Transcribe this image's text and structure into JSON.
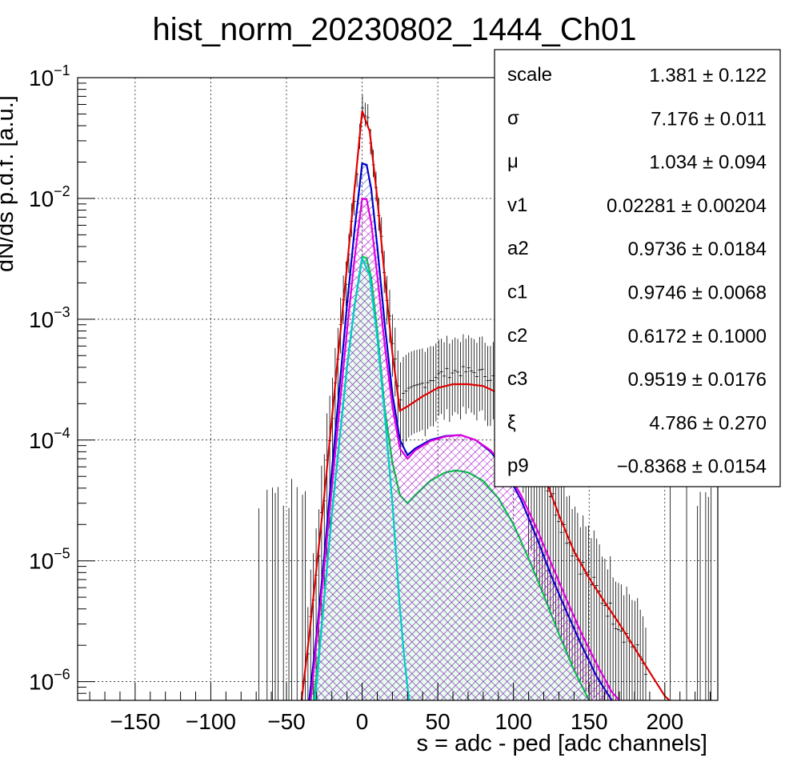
{
  "chart_data": {
    "type": "line",
    "title": "hist_norm_20230802_1444_Ch01",
    "xlabel": "s = adc - ped [adc channels]",
    "ylabel": "dN/ds p.d.f. [a.u.]",
    "xlim": [
      -188,
      235
    ],
    "ylim": [
      7e-07,
      0.1
    ],
    "yscale": "log",
    "grid": true,
    "x_ticks": [
      -150,
      -100,
      -50,
      0,
      50,
      100,
      150,
      200
    ],
    "x_tick_labels": [
      "−150",
      "−100",
      "−50",
      "0",
      "50",
      "100",
      "150",
      "200"
    ],
    "y_ticks": [
      {
        "base": "10",
        "exp": "−6",
        "value": 1e-06
      },
      {
        "base": "10",
        "exp": "−5",
        "value": 1e-05
      },
      {
        "base": "10",
        "exp": "−4",
        "value": 0.0001
      },
      {
        "base": "10",
        "exp": "−3",
        "value": 0.001
      },
      {
        "base": "10",
        "exp": "−2",
        "value": 0.01
      },
      {
        "base": "10",
        "exp": "−1",
        "value": 0.1
      }
    ],
    "legend_position": "top-right",
    "fit_parameters": [
      {
        "name": "scale",
        "value": "1.381",
        "error": "0.122"
      },
      {
        "name": "σ",
        "value": "7.176",
        "error": "0.011"
      },
      {
        "name": "μ",
        "value": "1.034",
        "error": "0.094"
      },
      {
        "name": "v1",
        "value": "0.02281",
        "error": "0.00204"
      },
      {
        "name": "a2",
        "value": "0.9736",
        "error": "0.0184"
      },
      {
        "name": "c1",
        "value": "0.9746",
        "error": "0.0068"
      },
      {
        "name": "c2",
        "value": "0.6172",
        "error": "0.1000"
      },
      {
        "name": "c3",
        "value": "0.9519",
        "error": "0.0176"
      },
      {
        "name": "ξ",
        "value": "4.786",
        "error": "0.270"
      },
      {
        "name": "p9",
        "value": "−0.8368",
        "error": "0.0154"
      }
    ],
    "pm_symbol": "±",
    "colors": {
      "total": "#e00000",
      "component_blue": "#0000cc",
      "component_magenta": "#e000e0",
      "component_green": "#00cc44",
      "component_cyan": "#00cccc",
      "data": "#000000",
      "grid": "#000000"
    },
    "series": [
      {
        "color_key": "total",
        "points": [
          [
            -40,
            7e-07
          ],
          [
            -35,
            2.4e-06
          ],
          [
            -30,
            9e-06
          ],
          [
            -25,
            3.5e-05
          ],
          [
            -20,
            0.00015
          ],
          [
            -15,
            0.00065
          ],
          [
            -10,
            0.0027
          ],
          [
            -5,
            0.012
          ],
          [
            0,
            0.053
          ],
          [
            5,
            0.036
          ],
          [
            10,
            0.01
          ],
          [
            15,
            0.0022
          ],
          [
            20,
            0.00052
          ],
          [
            25,
            0.000175
          ],
          [
            30,
            0.00019
          ],
          [
            40,
            0.00023
          ],
          [
            50,
            0.00027
          ],
          [
            60,
            0.00029
          ],
          [
            70,
            0.00029
          ],
          [
            80,
            0.00028
          ],
          [
            90,
            0.000245
          ],
          [
            100,
            0.00018
          ],
          [
            110,
            0.000105
          ],
          [
            120,
            5.2e-05
          ],
          [
            130,
            2.4e-05
          ],
          [
            140,
            1.2e-05
          ],
          [
            150,
            7.2e-06
          ],
          [
            160,
            4.6e-06
          ],
          [
            170,
            3e-06
          ],
          [
            180,
            1.9e-06
          ],
          [
            190,
            1.2e-06
          ],
          [
            200,
            7.6e-07
          ],
          [
            203,
            7e-07
          ]
        ]
      },
      {
        "color_key": "component_blue",
        "fill": "hatch",
        "points": [
          [
            -35,
            7e-07
          ],
          [
            -30,
            2.5e-06
          ],
          [
            -25,
            1.1e-05
          ],
          [
            -20,
            5.5e-05
          ],
          [
            -15,
            0.00027
          ],
          [
            -10,
            0.0013
          ],
          [
            -5,
            0.0055
          ],
          [
            0,
            0.0195
          ],
          [
            3,
            0.019
          ],
          [
            6,
            0.012
          ],
          [
            10,
            0.004
          ],
          [
            15,
            0.0009
          ],
          [
            20,
            0.00024
          ],
          [
            25,
            0.0001
          ],
          [
            30,
            7.5e-05
          ],
          [
            35,
            8.5e-05
          ],
          [
            45,
            0.0001
          ],
          [
            55,
            0.000108
          ],
          [
            65,
            0.00011
          ],
          [
            75,
            0.0001
          ],
          [
            85,
            8e-05
          ],
          [
            95,
            5.5e-05
          ],
          [
            105,
            3.2e-05
          ],
          [
            115,
            1.6e-05
          ],
          [
            125,
            7.5e-06
          ],
          [
            135,
            3.8e-06
          ],
          [
            145,
            2e-06
          ],
          [
            155,
            1.1e-06
          ],
          [
            165,
            7e-07
          ]
        ]
      },
      {
        "color_key": "component_magenta",
        "fill": "crosshatch",
        "points": [
          [
            -34,
            7e-07
          ],
          [
            -30,
            2.2e-06
          ],
          [
            -25,
            9e-06
          ],
          [
            -20,
            4e-05
          ],
          [
            -15,
            0.00018
          ],
          [
            -10,
            0.0008
          ],
          [
            -5,
            0.0032
          ],
          [
            0,
            0.01
          ],
          [
            3,
            0.0098
          ],
          [
            6,
            0.0063
          ],
          [
            10,
            0.0023
          ],
          [
            15,
            0.0006
          ],
          [
            20,
            0.00019
          ],
          [
            25,
            8.5e-05
          ],
          [
            30,
            7e-05
          ],
          [
            35,
            8.2e-05
          ],
          [
            45,
            9.8e-05
          ],
          [
            55,
            0.000107
          ],
          [
            65,
            0.00011
          ],
          [
            75,
            0.0001
          ],
          [
            85,
            8.2e-05
          ],
          [
            95,
            5.8e-05
          ],
          [
            105,
            3.5e-05
          ],
          [
            115,
            1.9e-05
          ],
          [
            125,
            9.5e-06
          ],
          [
            135,
            4.8e-06
          ],
          [
            145,
            2.5e-06
          ],
          [
            155,
            1.4e-06
          ],
          [
            165,
            8.2e-07
          ],
          [
            170,
            7e-07
          ]
        ]
      },
      {
        "color_key": "component_green",
        "fill": "hatch",
        "points": [
          [
            -32,
            7e-07
          ],
          [
            -28,
            2e-06
          ],
          [
            -24,
            7e-06
          ],
          [
            -20,
            2.5e-05
          ],
          [
            -15,
            0.0001
          ],
          [
            -10,
            0.0004
          ],
          [
            -5,
            0.0013
          ],
          [
            0,
            0.0033
          ],
          [
            3,
            0.0032
          ],
          [
            6,
            0.0022
          ],
          [
            10,
            0.0008
          ],
          [
            15,
            0.00018
          ],
          [
            20,
            6.5e-05
          ],
          [
            25,
            3.5e-05
          ],
          [
            30,
            3e-05
          ],
          [
            35,
            3.5e-05
          ],
          [
            45,
            4.6e-05
          ],
          [
            55,
            5.4e-05
          ],
          [
            62,
            5.6e-05
          ],
          [
            70,
            5.4e-05
          ],
          [
            80,
            4.6e-05
          ],
          [
            90,
            3.3e-05
          ],
          [
            100,
            2e-05
          ],
          [
            110,
            1.05e-05
          ],
          [
            120,
            5.2e-06
          ],
          [
            130,
            2.5e-06
          ],
          [
            140,
            1.25e-06
          ],
          [
            150,
            7e-07
          ]
        ]
      },
      {
        "color_key": "component_cyan",
        "points": [
          [
            -31,
            7e-07
          ],
          [
            -25,
            5e-06
          ],
          [
            -20,
            2.4e-05
          ],
          [
            -15,
            0.0001
          ],
          [
            -10,
            0.0004
          ],
          [
            -5,
            0.0013
          ],
          [
            0,
            0.0032
          ],
          [
            5,
            0.0023
          ],
          [
            10,
            0.0007
          ],
          [
            15,
            0.00016
          ],
          [
            20,
            3e-05
          ],
          [
            25,
            4e-06
          ],
          [
            28,
            1.5e-06
          ],
          [
            31,
            7e-07
          ]
        ]
      }
    ]
  }
}
